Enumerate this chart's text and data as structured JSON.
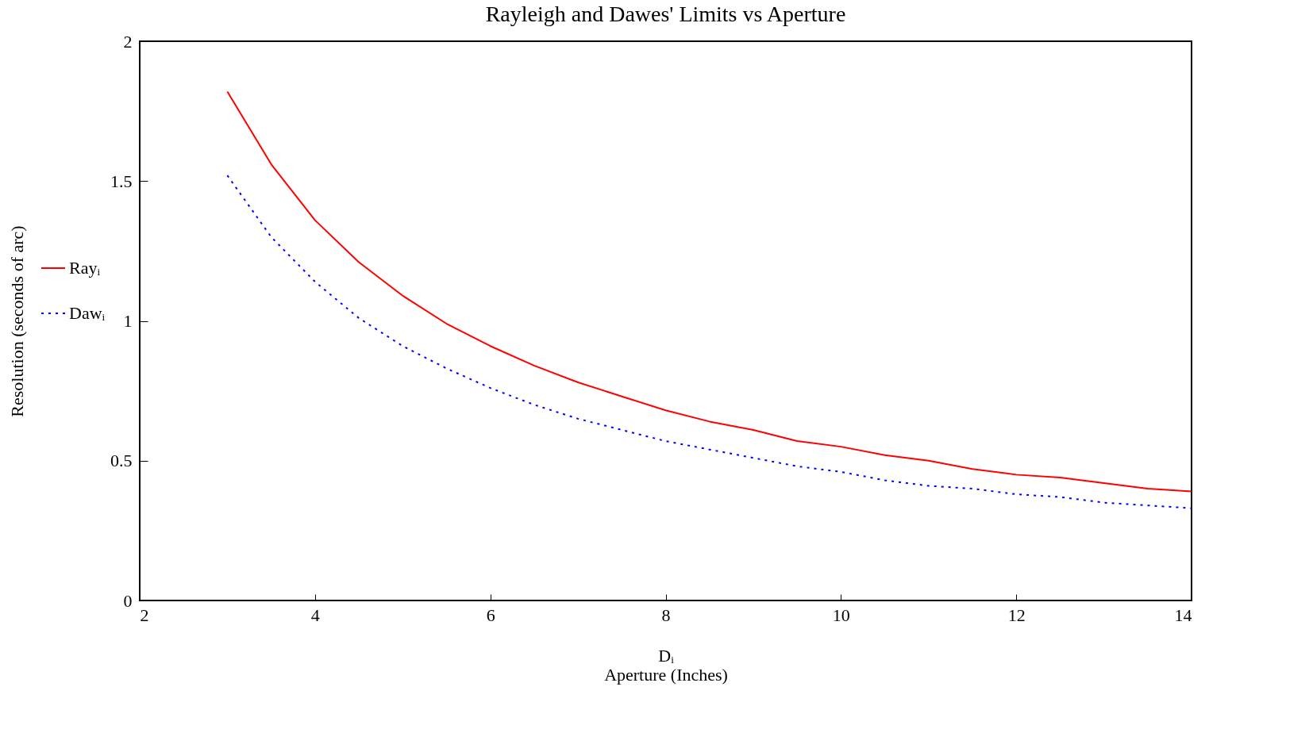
{
  "chart_data": {
    "type": "line",
    "title": "Rayleigh and Dawes' Limits  vs Aperture",
    "xlabel": "Dᵢ\nAperture (Inches)",
    "ylabel": "Resolution (seconds of arc)",
    "x": [
      3,
      3.5,
      4,
      4.5,
      5,
      5.5,
      6,
      6.5,
      7,
      7.5,
      8,
      8.5,
      9,
      9.5,
      10,
      10.5,
      11,
      11.5,
      12,
      12.5,
      13,
      13.5,
      14
    ],
    "series": [
      {
        "name": "Rayᵢ",
        "color": "#ff0000",
        "line_style": "solid",
        "values": [
          1.82,
          1.56,
          1.36,
          1.21,
          1.09,
          0.99,
          0.91,
          0.84,
          0.78,
          0.73,
          0.68,
          0.64,
          0.61,
          0.57,
          0.55,
          0.52,
          0.5,
          0.47,
          0.45,
          0.44,
          0.42,
          0.4,
          0.39
        ]
      },
      {
        "name": "Dawᵢ",
        "color": "#0000ff",
        "line_style": "dotted",
        "values": [
          1.52,
          1.3,
          1.14,
          1.01,
          0.91,
          0.83,
          0.76,
          0.7,
          0.65,
          0.61,
          0.57,
          0.54,
          0.51,
          0.48,
          0.46,
          0.43,
          0.41,
          0.4,
          0.38,
          0.37,
          0.35,
          0.34,
          0.33
        ]
      }
    ],
    "xlim": [
      2,
      14
    ],
    "xticks": [
      2,
      4,
      6,
      8,
      10,
      12,
      14
    ],
    "ylim": [
      0,
      2
    ],
    "yticks": [
      0,
      0.5,
      1,
      1.5,
      2
    ],
    "grid": false,
    "legend": "left",
    "marker": "none"
  }
}
